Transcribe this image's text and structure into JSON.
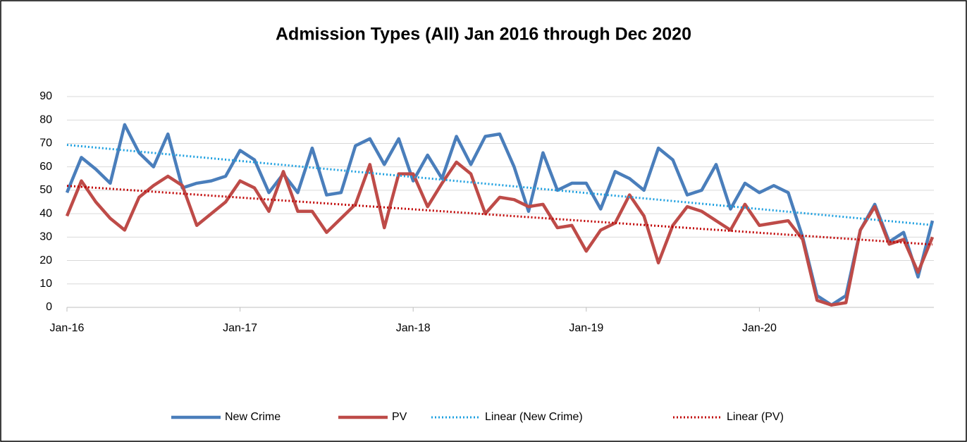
{
  "chart_data": {
    "type": "line",
    "title": "Admission Types (All) Jan 2016 through Dec 2020",
    "categories": [
      "Jan-16",
      null,
      null,
      null,
      null,
      null,
      null,
      null,
      null,
      null,
      null,
      null,
      "Jan-17",
      null,
      null,
      null,
      null,
      null,
      null,
      null,
      null,
      null,
      null,
      null,
      "Jan-18",
      null,
      null,
      null,
      null,
      null,
      null,
      null,
      null,
      null,
      null,
      null,
      "Jan-19",
      null,
      null,
      null,
      null,
      null,
      null,
      null,
      null,
      null,
      null,
      null,
      "Jan-20",
      null,
      null,
      null,
      null,
      null,
      null,
      null,
      null,
      null,
      null,
      null,
      null
    ],
    "series": [
      {
        "name": "New Crime",
        "color": "#4a7ebb",
        "values": [
          49,
          64,
          59,
          53,
          78,
          66,
          60,
          74,
          51,
          53,
          54,
          56,
          67,
          63,
          49,
          57,
          49,
          68,
          48,
          49,
          69,
          72,
          61,
          72,
          54,
          65,
          55,
          73,
          61,
          73,
          74,
          60,
          41,
          66,
          50,
          53,
          53,
          42,
          58,
          55,
          50,
          68,
          63,
          48,
          50,
          61,
          42,
          53,
          49,
          52,
          49,
          30,
          5,
          1,
          5,
          33,
          44,
          28,
          32,
          13,
          37
        ]
      },
      {
        "name": "PV",
        "color": "#be4b48",
        "values": [
          39,
          54,
          45,
          38,
          33,
          47,
          52,
          56,
          52,
          35,
          40,
          45,
          54,
          51,
          41,
          58,
          41,
          41,
          32,
          38,
          44,
          61,
          34,
          57,
          57,
          43,
          53,
          62,
          57,
          40,
          47,
          46,
          43,
          44,
          34,
          35,
          24,
          33,
          36,
          48,
          39,
          19,
          35,
          43,
          41,
          37,
          33,
          44,
          35,
          36,
          37,
          29,
          3,
          1,
          2,
          33,
          43,
          27,
          29,
          15,
          30
        ]
      },
      {
        "name": "Linear (New Crime)",
        "color": "#1ea0e0",
        "trendline_of": 0,
        "dash": "dotted"
      },
      {
        "name": "Linear (PV)",
        "color": "#c00000",
        "trendline_of": 1,
        "dash": "dotted"
      }
    ],
    "ylim": [
      0,
      90
    ],
    "yticks": [
      0,
      10,
      20,
      30,
      40,
      50,
      60,
      70,
      80,
      90
    ],
    "grid": true,
    "legend": "bottom"
  }
}
